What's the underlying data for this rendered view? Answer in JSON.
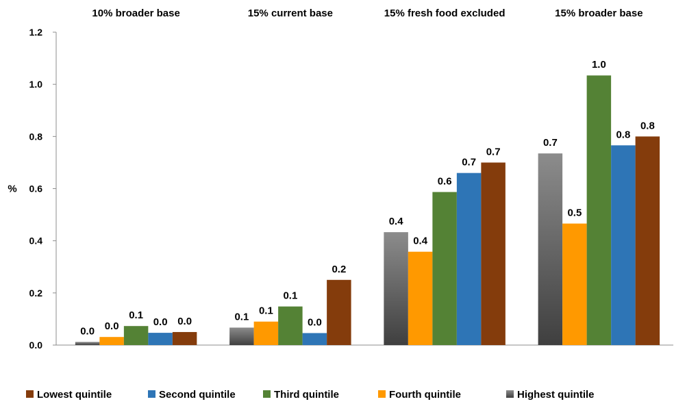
{
  "chart_data": {
    "type": "bar",
    "categories": [
      "10% broader base",
      "15% current base",
      "15% fresh food excluded",
      "15% broader base"
    ],
    "ylabel": "%",
    "ylim": [
      0,
      1.2
    ],
    "yticks": [
      "0.0",
      "0.2",
      "0.4",
      "0.6",
      "0.8",
      "1.0",
      "1.2"
    ],
    "grid": false,
    "legend_position": "bottom",
    "bar_order": [
      "Highest quintile",
      "Fourth quintile",
      "Third quintile",
      "Second quintile",
      "Lowest quintile"
    ],
    "series": [
      {
        "name": "Lowest quintile",
        "color": "#843c0c",
        "values": [
          0.05,
          0.25,
          0.7,
          0.8
        ],
        "labels": [
          "0.0",
          "0.2",
          "0.7",
          "0.8"
        ]
      },
      {
        "name": "Second quintile",
        "color": "#2e75b6",
        "values": [
          0.047,
          0.046,
          0.66,
          0.766
        ],
        "labels": [
          "0.0",
          "0.0",
          "0.7",
          "0.8"
        ]
      },
      {
        "name": "Third quintile",
        "color": "#548235",
        "values": [
          0.073,
          0.148,
          0.587,
          1.034
        ],
        "labels": [
          "0.1",
          "0.1",
          "0.6",
          "1.0"
        ]
      },
      {
        "name": "Fourth quintile",
        "color": "#ff9900",
        "values": [
          0.031,
          0.09,
          0.358,
          0.466
        ],
        "labels": [
          "0.0",
          "0.1",
          "0.4",
          "0.5"
        ]
      },
      {
        "name": "Highest quintile",
        "color": "#767171",
        "values": [
          0.012,
          0.067,
          0.433,
          0.735
        ],
        "labels": [
          "0.0",
          "0.1",
          "0.4",
          "0.7"
        ]
      }
    ]
  }
}
